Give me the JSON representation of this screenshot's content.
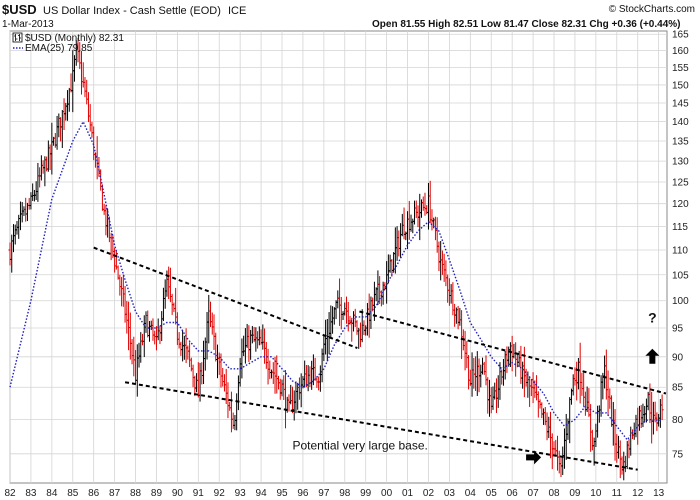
{
  "header": {
    "symbol": "$USD",
    "name": "US Dollar Index - Cash Settle (EOD)",
    "exchange": "ICE",
    "date": "1-Mar-2013",
    "quote": "Open 81.55   High 82.51   Low 81.47   Close 82.31   Chg +0.36 (+0.44%)",
    "watermark": "© StockCharts.com"
  },
  "legend": {
    "price_label": "$USD (Monthly) 82.31",
    "ema_label": "EMA(25) 79.85"
  },
  "annotations": {
    "base_text": "Potential very large base.",
    "question": "?"
  },
  "colors": {
    "up": "#000000",
    "down": "#e00000",
    "ema": "#2020c0",
    "trend": "#000000",
    "grid": "#d4d4d4"
  },
  "chart_data": {
    "type": "ohlc",
    "title": "$USD US Dollar Index - Cash Settle (EOD)",
    "frequency": "monthly",
    "x_tick_labels": [
      "82",
      "83",
      "84",
      "85",
      "86",
      "87",
      "88",
      "89",
      "90",
      "91",
      "92",
      "93",
      "94",
      "95",
      "96",
      "97",
      "98",
      "99",
      "00",
      "01",
      "02",
      "03",
      "04",
      "05",
      "06",
      "07",
      "08",
      "09",
      "10",
      "11",
      "12",
      "13"
    ],
    "y_tick_labels": [
      "75",
      "80",
      "85",
      "90",
      "95",
      "100",
      "105",
      "110",
      "115",
      "120",
      "125",
      "130",
      "135",
      "140",
      "145",
      "150",
      "155",
      "160",
      "165"
    ],
    "ylim": [
      71,
      166
    ],
    "xlim": [
      1982.0,
      2013.4
    ],
    "y_scale": "log",
    "grid": true,
    "last_close": 82.31,
    "ema_last": 79.85,
    "price_path": [
      [
        1982.0,
        110
      ],
      [
        1982.5,
        116
      ],
      [
        1983.0,
        120
      ],
      [
        1983.5,
        127
      ],
      [
        1984.0,
        133
      ],
      [
        1984.5,
        142
      ],
      [
        1985.0,
        152
      ],
      [
        1985.17,
        160
      ],
      [
        1985.6,
        147
      ],
      [
        1986.0,
        133
      ],
      [
        1986.5,
        118
      ],
      [
        1987.0,
        108
      ],
      [
        1987.5,
        98
      ],
      [
        1988.0,
        87
      ],
      [
        1988.5,
        96
      ],
      [
        1989.0,
        92
      ],
      [
        1989.5,
        103
      ],
      [
        1990.0,
        94
      ],
      [
        1990.5,
        90
      ],
      [
        1991.0,
        84
      ],
      [
        1991.5,
        97
      ],
      [
        1992.0,
        88
      ],
      [
        1992.7,
        79
      ],
      [
        1993.0,
        90
      ],
      [
        1993.5,
        93
      ],
      [
        1994.0,
        92
      ],
      [
        1994.5,
        88
      ],
      [
        1995.0,
        85
      ],
      [
        1995.3,
        81
      ],
      [
        1995.8,
        85
      ],
      [
        1996.3,
        87
      ],
      [
        1996.8,
        87
      ],
      [
        1997.0,
        92
      ],
      [
        1997.6,
        99
      ],
      [
        1998.0,
        99
      ],
      [
        1998.7,
        94
      ],
      [
        1999.0,
        96
      ],
      [
        1999.5,
        101
      ],
      [
        2000.0,
        104
      ],
      [
        2000.8,
        115
      ],
      [
        2001.5,
        118
      ],
      [
        2002.0,
        120
      ],
      [
        2002.6,
        107
      ],
      [
        2003.0,
        102
      ],
      [
        2003.5,
        96
      ],
      [
        2004.0,
        86
      ],
      [
        2004.6,
        89
      ],
      [
        2005.0,
        81
      ],
      [
        2005.9,
        92
      ],
      [
        2006.5,
        87
      ],
      [
        2007.0,
        84
      ],
      [
        2007.5,
        80
      ],
      [
        2008.0,
        76
      ],
      [
        2008.3,
        72
      ],
      [
        2008.9,
        86
      ],
      [
        2009.2,
        88
      ],
      [
        2009.9,
        76
      ],
      [
        2010.4,
        88
      ],
      [
        2010.9,
        77
      ],
      [
        2011.3,
        73
      ],
      [
        2011.8,
        79
      ],
      [
        2012.5,
        83
      ],
      [
        2012.8,
        79
      ],
      [
        2013.17,
        82.31
      ]
    ],
    "ema_path": [
      [
        1982.0,
        85
      ],
      [
        1983.0,
        100
      ],
      [
        1984.0,
        121
      ],
      [
        1985.0,
        135
      ],
      [
        1985.5,
        140
      ],
      [
        1986.0,
        134
      ],
      [
        1986.5,
        122
      ],
      [
        1987.0,
        111
      ],
      [
        1987.5,
        104
      ],
      [
        1988.0,
        98
      ],
      [
        1988.5,
        95
      ],
      [
        1989.0,
        95
      ],
      [
        1989.5,
        96
      ],
      [
        1990.0,
        96
      ],
      [
        1990.5,
        93
      ],
      [
        1991.0,
        91
      ],
      [
        1991.5,
        91
      ],
      [
        1992.0,
        90
      ],
      [
        1992.5,
        88
      ],
      [
        1993.0,
        88
      ],
      [
        1993.5,
        89
      ],
      [
        1994.0,
        90
      ],
      [
        1994.5,
        90
      ],
      [
        1995.0,
        88
      ],
      [
        1995.5,
        86
      ],
      [
        1996.0,
        85
      ],
      [
        1996.5,
        86
      ],
      [
        1997.0,
        88
      ],
      [
        1997.5,
        92
      ],
      [
        1998.0,
        95
      ],
      [
        1998.5,
        97
      ],
      [
        1999.0,
        97
      ],
      [
        1999.5,
        99
      ],
      [
        2000.0,
        103
      ],
      [
        2000.5,
        107
      ],
      [
        2001.0,
        111
      ],
      [
        2001.5,
        114
      ],
      [
        2002.0,
        116
      ],
      [
        2002.5,
        114
      ],
      [
        2003.0,
        108
      ],
      [
        2003.5,
        102
      ],
      [
        2004.0,
        96
      ],
      [
        2004.5,
        93
      ],
      [
        2005.0,
        90
      ],
      [
        2005.5,
        88
      ],
      [
        2006.0,
        89
      ],
      [
        2006.5,
        88
      ],
      [
        2007.0,
        86
      ],
      [
        2007.5,
        84
      ],
      [
        2008.0,
        81
      ],
      [
        2008.5,
        79
      ],
      [
        2009.0,
        80
      ],
      [
        2009.5,
        82
      ],
      [
        2010.0,
        81
      ],
      [
        2010.5,
        81
      ],
      [
        2011.0,
        79
      ],
      [
        2011.5,
        77
      ],
      [
        2012.0,
        79
      ],
      [
        2012.5,
        80
      ],
      [
        2013.17,
        79.85
      ]
    ],
    "trendlines": [
      {
        "from": [
          1986.0,
          110.5
        ],
        "to": [
          1998.6,
          91.5
        ]
      },
      {
        "from": [
          1998.7,
          98.0
        ],
        "to": [
          2013.35,
          84.0
        ]
      },
      {
        "from": [
          1987.5,
          85.8
        ],
        "to": [
          2012.0,
          72.8
        ]
      }
    ],
    "markers": [
      {
        "kind": "arrow-right",
        "x": 2007.0,
        "y": 74.5
      },
      {
        "kind": "arrow-up",
        "x": 2012.7,
        "y": 90.0
      }
    ],
    "text_positions": {
      "base_text": [
        1995.5,
        75.6
      ],
      "question": [
        2012.7,
        96.0
      ]
    }
  }
}
